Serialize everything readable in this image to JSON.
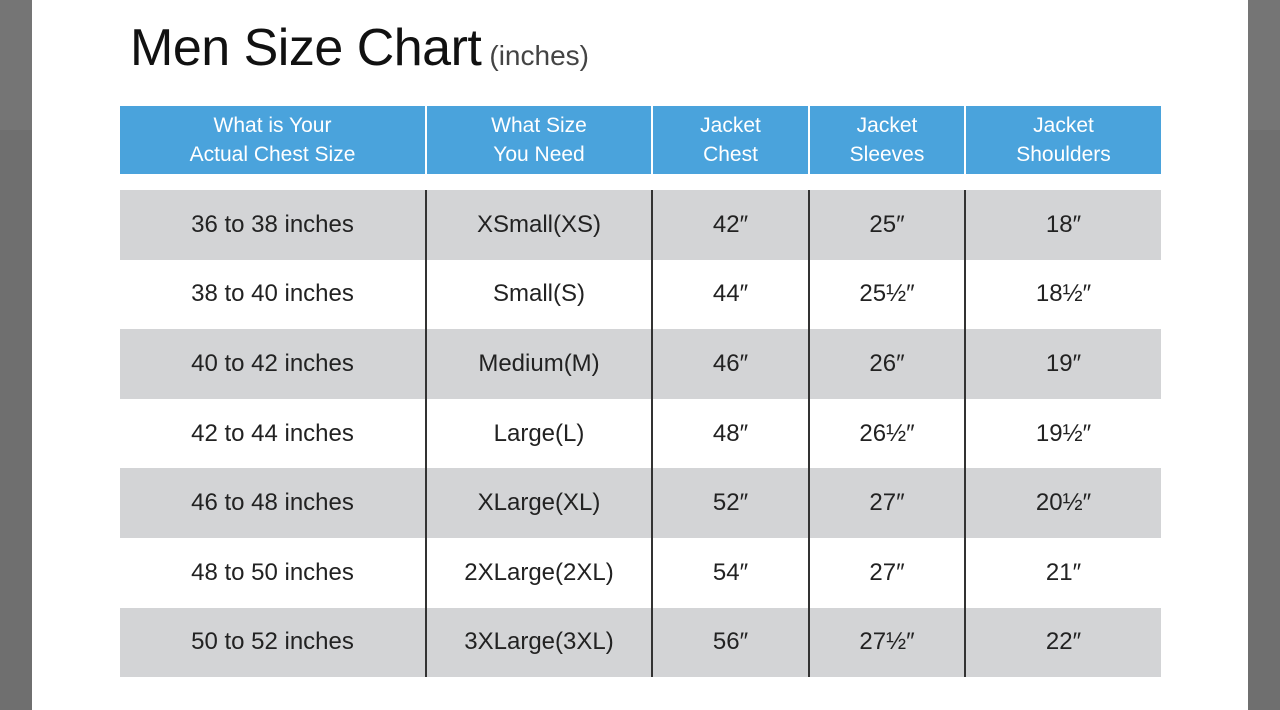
{
  "title": "Men Size Chart",
  "unit": "(inches)",
  "colors": {
    "header": "#4aa3dc",
    "shaded_row": "#d3d4d6"
  },
  "headers": [
    "What is Your\nActual Chest Size",
    "What Size\nYou Need",
    "Jacket\nChest",
    "Jacket\nSleeves",
    "Jacket\nShoulders"
  ],
  "rows": [
    [
      "36 to 38 inches",
      "XSmall(XS)",
      "42″",
      "25″",
      "18″"
    ],
    [
      "38 to 40 inches",
      "Small(S)",
      "44″",
      "25½″",
      "18½″"
    ],
    [
      "40 to 42 inches",
      "Medium(M)",
      "46″",
      "26″",
      "19″"
    ],
    [
      "42 to 44 inches",
      "Large(L)",
      "48″",
      "26½″",
      "19½″"
    ],
    [
      "46 to 48 inches",
      "XLarge(XL)",
      "52″",
      "27″",
      "20½″"
    ],
    [
      "48 to 50 inches",
      "2XLarge(2XL)",
      "54″",
      "27″",
      "21″"
    ],
    [
      "50 to 52 inches",
      "3XLarge(3XL)",
      "56″",
      "27½″",
      "22″"
    ]
  ]
}
